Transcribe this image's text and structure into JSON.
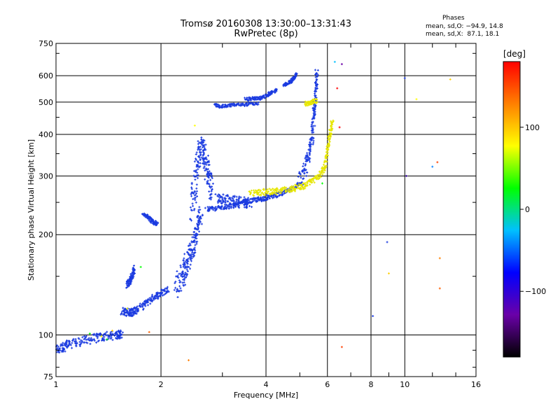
{
  "header": {
    "title_line1": "Tromsø 20160308 13:30:00–13:31:43",
    "title_line2": "RwPretec (8p)"
  },
  "phases_box": {
    "title": "Phases",
    "line_o": "mean, sd,O: −94.9, 14.8",
    "line_x": "mean, sd,X:  87.1, 18.1"
  },
  "colorbar": {
    "unit": "[deg]",
    "ticks": [
      {
        "value": 100,
        "label": "100"
      },
      {
        "value": 0,
        "label": "0"
      },
      {
        "value": -100,
        "label": "−100"
      }
    ],
    "range": [
      -180,
      180
    ],
    "colors": [
      "#000000",
      "#6a00a8",
      "#0000ff",
      "#00c0ff",
      "#00ff00",
      "#ffff00",
      "#ff8000",
      "#ff0000"
    ]
  },
  "chart_data": {
    "type": "scatter",
    "title": "Tromsø 20160308 13:30:00–13:31:43",
    "subtitle": "RwPretec (8p)",
    "xlabel": "Frequency [MHz]",
    "ylabel": "Stationary phase Virtual Height [km]",
    "xscale": "log",
    "yscale": "log",
    "xlim": [
      1,
      16
    ],
    "ylim": [
      75,
      750
    ],
    "xticks": [
      1,
      2,
      4,
      6,
      8,
      10,
      16
    ],
    "xtick_labels": [
      "1",
      "2",
      "4",
      "6",
      "8",
      "10",
      "16"
    ],
    "yticks": [
      75,
      100,
      200,
      300,
      400,
      500,
      600,
      750
    ],
    "ytick_labels": [
      "75",
      "100",
      "200",
      "300",
      "400",
      "500",
      "600",
      "750"
    ],
    "grid": true,
    "color_variable": "phase [deg]",
    "legend": "colorbar-right",
    "traces": [
      {
        "color": "#1a3ae0",
        "x": [
          1.0,
          1.05,
          1.1,
          1.2,
          1.3,
          1.4,
          1.5,
          1.55
        ],
        "y": [
          90,
          92,
          94,
          96,
          98,
          99,
          100,
          101
        ],
        "width_x": 0.02,
        "width_y": 3
      },
      {
        "color": "#1a3ae0",
        "x": [
          1.55,
          1.6,
          1.65,
          1.7,
          1.8,
          1.9,
          2.0,
          2.1
        ],
        "y": [
          118,
          117,
          117,
          119,
          124,
          130,
          133,
          138
        ],
        "width_x": 0.02,
        "width_y": 3
      },
      {
        "color": "#1a3ae0",
        "x": [
          1.6,
          1.63,
          1.65,
          1.68
        ],
        "y": [
          142,
          145,
          150,
          158
        ],
        "width_x": 0.01,
        "width_y": 4
      },
      {
        "color": "#1a3ae0",
        "x": [
          1.78,
          1.85,
          1.9,
          1.95
        ],
        "y": [
          230,
          225,
          218,
          215
        ],
        "width_x": 0.02,
        "width_y": 3
      },
      {
        "color": "#1a3ae0",
        "x": [
          2.2,
          2.3,
          2.35,
          2.4,
          2.45,
          2.5,
          2.55,
          2.6
        ],
        "y": [
          140,
          150,
          160,
          170,
          180,
          195,
          215,
          235
        ],
        "width_x": 0.04,
        "width_y": 12
      },
      {
        "color": "#1a3ae0",
        "x": [
          2.45,
          2.5,
          2.55,
          2.6,
          2.65,
          2.7,
          2.75,
          2.8
        ],
        "y": [
          240,
          280,
          330,
          370,
          360,
          320,
          290,
          270
        ],
        "width_x": 0.04,
        "width_y": 25
      },
      {
        "color": "#1a3ae0",
        "x": [
          2.7,
          2.9,
          3.1,
          3.3,
          3.5,
          3.7,
          3.9,
          4.1,
          4.4,
          4.7,
          5.0
        ],
        "y": [
          238,
          240,
          243,
          246,
          250,
          254,
          256,
          260,
          265,
          272,
          285
        ],
        "width_x": 0.03,
        "width_y": 4
      },
      {
        "color": "#1a3ae0",
        "x": [
          2.9,
          3.0,
          3.2,
          3.4,
          3.6
        ],
        "y": [
          260,
          255,
          252,
          250,
          250
        ],
        "width_x": 0.05,
        "width_y": 10
      },
      {
        "color": "#1a3ae0",
        "x": [
          5.0,
          5.2,
          5.35,
          5.45,
          5.5,
          5.55,
          5.6
        ],
        "y": [
          290,
          320,
          360,
          410,
          470,
          540,
          620
        ],
        "width_x": 0.06,
        "width_y": 15
      },
      {
        "color": "#1a3ae0",
        "x": [
          2.85,
          3.0,
          3.2,
          3.5,
          3.8
        ],
        "y": [
          490,
          485,
          490,
          492,
          495
        ],
        "width_x": 0.03,
        "width_y": 5
      },
      {
        "color": "#1a3ae0",
        "x": [
          3.5,
          3.7,
          3.9,
          4.1,
          4.3
        ],
        "y": [
          510,
          512,
          515,
          530,
          545
        ],
        "width_x": 0.03,
        "width_y": 6
      },
      {
        "color": "#1a3ae0",
        "x": [
          4.5,
          4.7,
          4.8,
          4.9
        ],
        "y": [
          560,
          575,
          590,
          610
        ],
        "width_x": 0.03,
        "width_y": 6
      },
      {
        "color": "#e6e600",
        "x": [
          3.6,
          3.9,
          4.2,
          4.5,
          4.8,
          5.1,
          5.4,
          5.7,
          5.9,
          6.0,
          6.1,
          6.2
        ],
        "y": [
          265,
          268,
          270,
          272,
          275,
          280,
          290,
          300,
          320,
          360,
          400,
          440
        ],
        "width_x": 0.05,
        "width_y": 6
      },
      {
        "color": "#e6e600",
        "x": [
          5.2,
          5.4,
          5.6
        ],
        "y": [
          495,
          500,
          505
        ],
        "width_x": 0.05,
        "width_y": 8
      }
    ],
    "points": [
      {
        "x": 1.25,
        "y": 101,
        "color": "#00ff00"
      },
      {
        "x": 1.35,
        "y": 99,
        "color": "#ffff00"
      },
      {
        "x": 1.4,
        "y": 97,
        "color": "#00ff00"
      },
      {
        "x": 1.45,
        "y": 103,
        "color": "#ffd000"
      },
      {
        "x": 1.6,
        "y": 120,
        "color": "#ffff00"
      },
      {
        "x": 1.75,
        "y": 160,
        "color": "#00ff00"
      },
      {
        "x": 1.85,
        "y": 102,
        "color": "#ff6000"
      },
      {
        "x": 2.4,
        "y": 84,
        "color": "#ff8000"
      },
      {
        "x": 2.5,
        "y": 425,
        "color": "#ffff00"
      },
      {
        "x": 6.6,
        "y": 92,
        "color": "#ff4000"
      },
      {
        "x": 8.1,
        "y": 114,
        "color": "#1a3ae0"
      },
      {
        "x": 8.9,
        "y": 190,
        "color": "#1a3ae0"
      },
      {
        "x": 9.0,
        "y": 153,
        "color": "#ffd000"
      },
      {
        "x": 10.0,
        "y": 590,
        "color": "#1a3ae0"
      },
      {
        "x": 10.1,
        "y": 300,
        "color": "#3000a0"
      },
      {
        "x": 10.8,
        "y": 510,
        "color": "#ffff00"
      },
      {
        "x": 12.0,
        "y": 320,
        "color": "#0080ff"
      },
      {
        "x": 12.4,
        "y": 330,
        "color": "#ff4000"
      },
      {
        "x": 12.6,
        "y": 170,
        "color": "#ff8000"
      },
      {
        "x": 12.6,
        "y": 138,
        "color": "#ff6000"
      },
      {
        "x": 13.5,
        "y": 585,
        "color": "#ffd000"
      },
      {
        "x": 6.3,
        "y": 660,
        "color": "#00c0ff"
      },
      {
        "x": 6.6,
        "y": 650,
        "color": "#6a00a8"
      },
      {
        "x": 6.4,
        "y": 550,
        "color": "#ff0000"
      },
      {
        "x": 6.5,
        "y": 420,
        "color": "#ff0000"
      },
      {
        "x": 5.8,
        "y": 285,
        "color": "#00ff00"
      }
    ]
  }
}
